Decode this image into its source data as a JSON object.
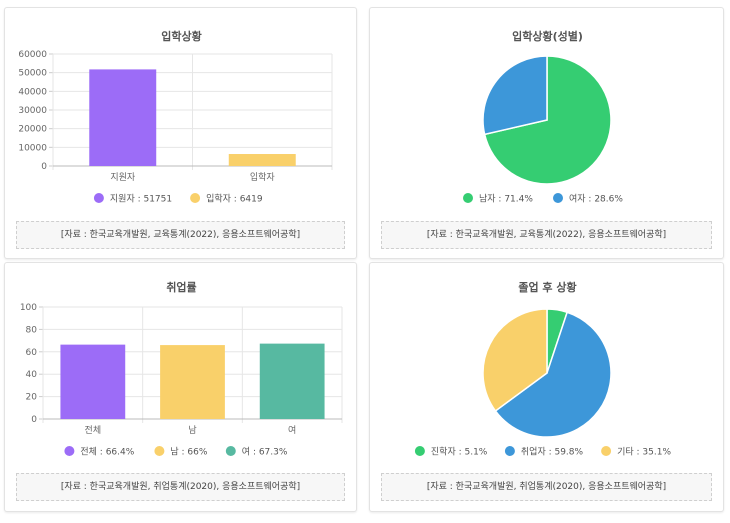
{
  "chart_data": [
    {
      "type": "bar",
      "title": "입학상황",
      "categories": [
        "지원자",
        "입학자"
      ],
      "values": [
        51751,
        6419
      ],
      "colors": [
        "#9c6cf7",
        "#f9d06a"
      ],
      "ylim": [
        0,
        60000
      ],
      "yticks": [
        0,
        10000,
        20000,
        30000,
        40000,
        50000,
        60000
      ],
      "grid": true,
      "legend": [
        "지원자 : 51751",
        "입학자 : 6419"
      ],
      "legend_position": "bottom",
      "source": "[자료 : 한국교육개발원, 교육통계(2022), 응용소프트웨어공학]"
    },
    {
      "type": "pie",
      "title": "입학상황(성별)",
      "labels": [
        "남자",
        "여자"
      ],
      "values": [
        71.4,
        28.6
      ],
      "colors": [
        "#35cd72",
        "#3d97d9"
      ],
      "legend": [
        "남자 : 71.4%",
        "여자 : 28.6%"
      ],
      "legend_position": "bottom",
      "source": "[자료 : 한국교육개발원, 교육통계(2022), 응용소프트웨어공학]"
    },
    {
      "type": "bar",
      "title": "취업률",
      "categories": [
        "전체",
        "남",
        "여"
      ],
      "values": [
        66.4,
        66,
        67.3
      ],
      "colors": [
        "#9c6cf7",
        "#f9d06a",
        "#57b9a1"
      ],
      "ylim": [
        0,
        100
      ],
      "yticks": [
        0,
        20,
        40,
        60,
        80,
        100
      ],
      "grid": true,
      "legend": [
        "전체 : 66.4%",
        "남 : 66%",
        "여 : 67.3%"
      ],
      "legend_position": "bottom",
      "source": "[자료 : 한국교육개발원, 취업통계(2020), 응용소프트웨어공학]"
    },
    {
      "type": "pie",
      "title": "졸업 후 상황",
      "labels": [
        "진학자",
        "취업자",
        "기타"
      ],
      "values": [
        5.1,
        59.8,
        35.1
      ],
      "colors": [
        "#35cd72",
        "#3d97d9",
        "#f9d06a"
      ],
      "legend": [
        "진학자 : 5.1%",
        "취업자 : 59.8%",
        "기타 : 35.1%"
      ],
      "legend_position": "bottom",
      "source": "[자료 : 한국교육개발원, 취업통계(2020), 응용소프트웨어공학]"
    }
  ]
}
